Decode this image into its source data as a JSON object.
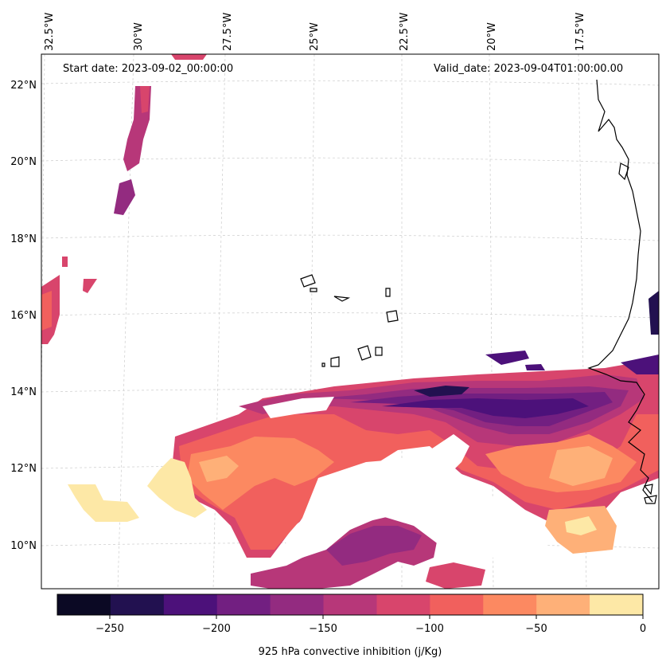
{
  "figure": {
    "start_date": "Start date: 2023-09-02_00:00:00",
    "valid_date": "Valid_date: 2023-09-04T01:00:00.00"
  },
  "axes": {
    "lon_labels": [
      "32.5°W",
      "30°W",
      "27.5°W",
      "25°W",
      "22.5°W",
      "20°W",
      "17.5°W"
    ],
    "lat_labels": [
      "22°N",
      "20°N",
      "18°N",
      "16°N",
      "14°N",
      "12°N",
      "10°N"
    ]
  },
  "colorbar": {
    "label": "925 hPa convective inhibition (j/Kg)",
    "ticks": [
      "−250",
      "−200",
      "−150",
      "−100",
      "−50",
      "0"
    ],
    "colors": [
      "#0b0924",
      "#221150",
      "#4c117a",
      "#721f81",
      "#932b80",
      "#b73779",
      "#d8456c",
      "#f1605d",
      "#fc8961",
      "#feb078",
      "#fde8a6"
    ]
  },
  "map_region": {
    "lon_range": [
      -32.5,
      -16
    ],
    "lat_range": [
      8.8,
      22.8
    ],
    "colors": {
      "land_line": "#000000",
      "grid": "#cccccc"
    }
  }
}
